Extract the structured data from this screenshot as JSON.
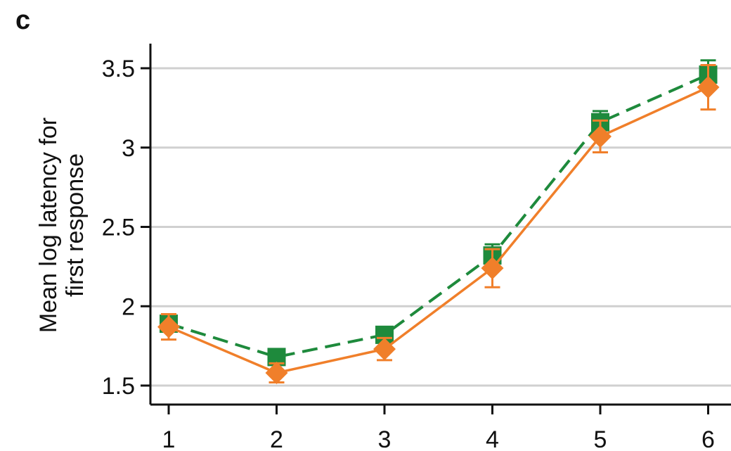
{
  "panel": {
    "label": "c"
  },
  "chart_data": {
    "type": "line",
    "title": "",
    "xlabel": "",
    "ylabel": [
      "Mean log latency for",
      "first response"
    ],
    "categories": [
      1,
      2,
      3,
      4,
      5,
      6
    ],
    "x_tick_labels": [
      "1",
      "2",
      "3",
      "4",
      "5",
      "6"
    ],
    "y_ticks": [
      1.5,
      2,
      2.5,
      3,
      3.5
    ],
    "y_tick_labels": [
      "1.5",
      "2",
      "2.5",
      "3",
      "3.5"
    ],
    "ylim": [
      1.45,
      3.65
    ],
    "grid": true,
    "series": [
      {
        "marker": "square",
        "line_style": "dashed",
        "color": "#1e8a3c",
        "values": [
          1.89,
          1.68,
          1.82,
          2.32,
          3.16,
          3.46
        ],
        "error": [
          0.05,
          0.04,
          0.05,
          0.07,
          0.07,
          0.09
        ]
      },
      {
        "marker": "diamond",
        "line_style": "solid",
        "color": "#f07f2a",
        "values": [
          1.87,
          1.58,
          1.73,
          2.24,
          3.07,
          3.38
        ],
        "error": [
          0.08,
          0.06,
          0.07,
          0.12,
          0.1,
          0.14
        ]
      }
    ]
  }
}
